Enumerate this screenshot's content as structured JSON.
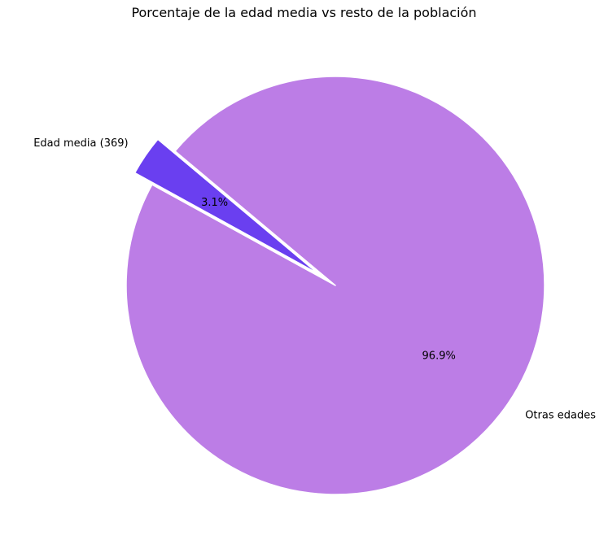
{
  "chart_data": {
    "type": "pie",
    "title": "Porcentaje de la edad media vs resto de la población",
    "slices": [
      {
        "label": "Edad media (369)",
        "pct_label": "3.1%",
        "value": 3.1,
        "color": "#6a3ff0",
        "exploded": true
      },
      {
        "label": "Otras edades",
        "pct_label": "96.9%",
        "value": 96.9,
        "color": "#bc7de6",
        "exploded": false
      }
    ],
    "start_angle_deg": 140,
    "legend": "none"
  }
}
